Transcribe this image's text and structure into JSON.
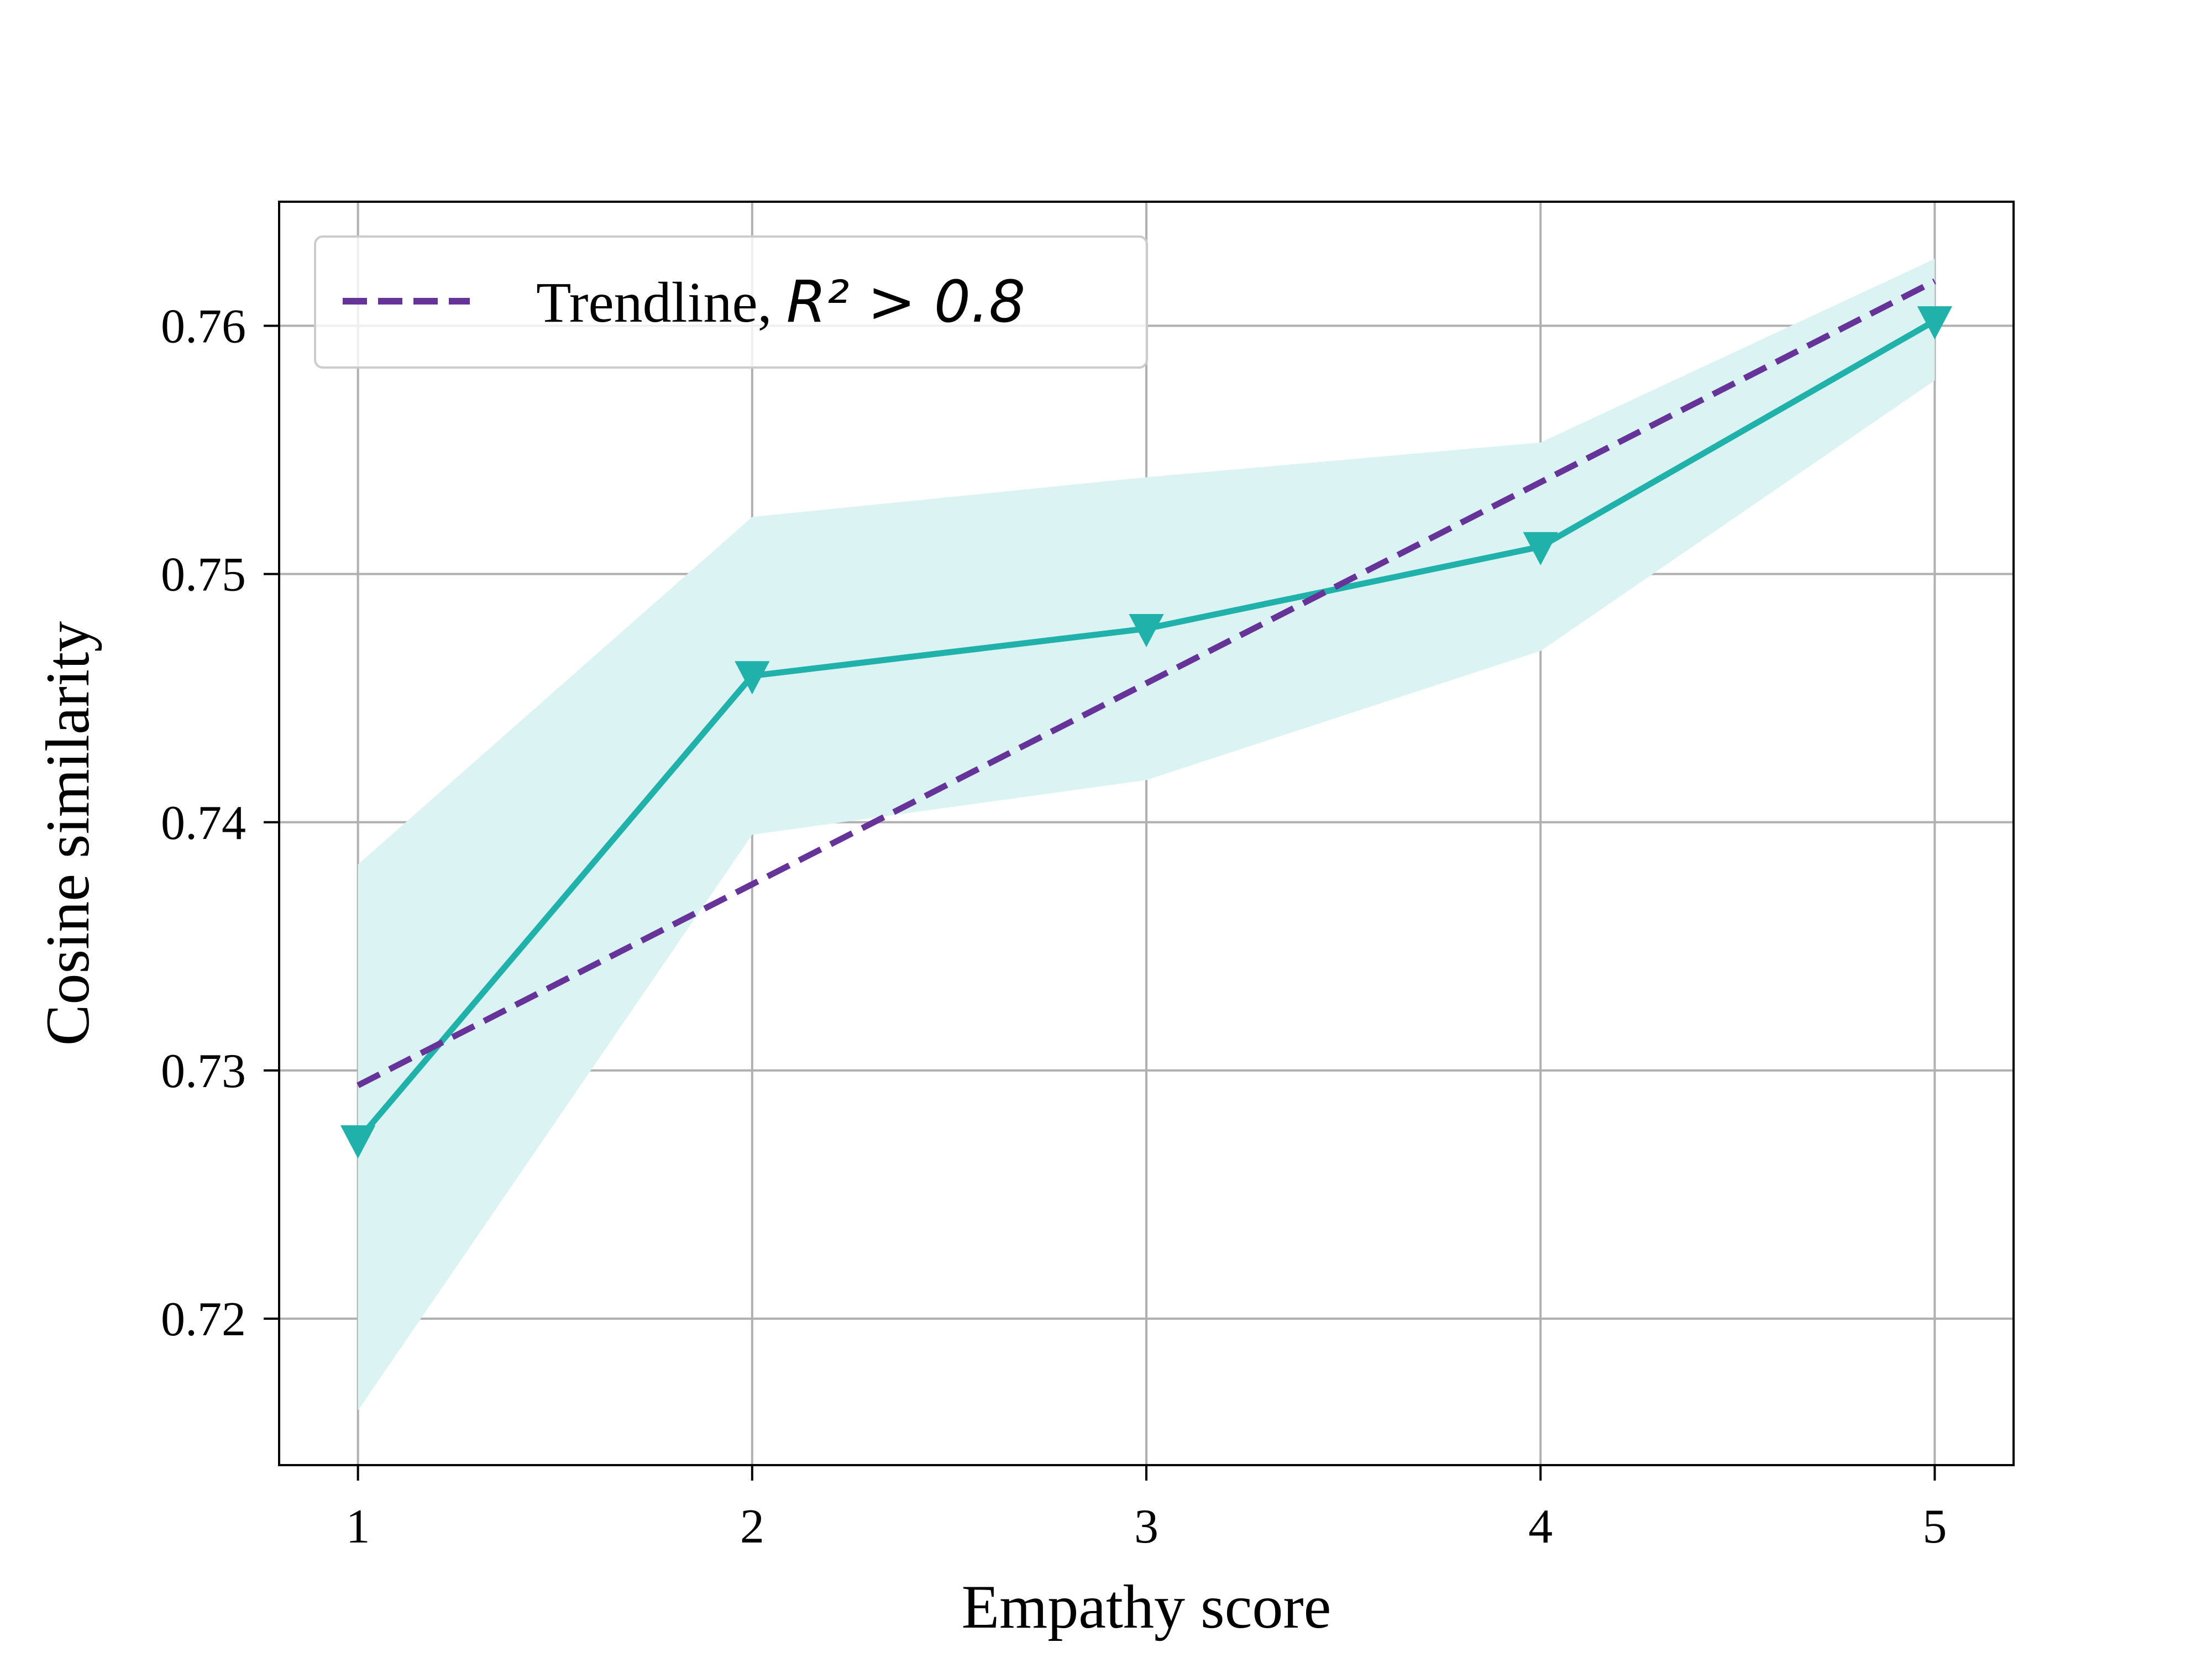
{
  "chart_data": {
    "type": "line",
    "xlabel": "Empathy score",
    "ylabel": "Cosine similarity",
    "x": [
      1,
      2,
      3,
      4,
      5
    ],
    "x_ticks": [
      "1",
      "2",
      "3",
      "4",
      "5"
    ],
    "xlim": [
      0.8,
      5.2
    ],
    "y_ticks": [
      "0.72",
      "0.73",
      "0.74",
      "0.75",
      "0.76"
    ],
    "ylim": [
      0.7141,
      0.765
    ],
    "grid": true,
    "legend_position": "upper-left",
    "series": [
      {
        "values": [
          0.7272,
          0.7459,
          0.7478,
          0.7511,
          0.7602
        ],
        "lower": [
          0.7163,
          0.7395,
          0.7417,
          0.7469,
          0.7578
        ],
        "upper": [
          0.7383,
          0.7523,
          0.7539,
          0.7553,
          0.7627
        ],
        "marker": "triangle-down",
        "color": "#20b2aa",
        "band_color": "#dbf3f2"
      },
      {
        "name": "Trendline, ",
        "name_math": "R² > 0.8",
        "values": [
          0.7294,
          0.7375,
          0.7456,
          0.7537,
          0.7618
        ],
        "style": "dashed",
        "color": "#663399"
      }
    ]
  }
}
